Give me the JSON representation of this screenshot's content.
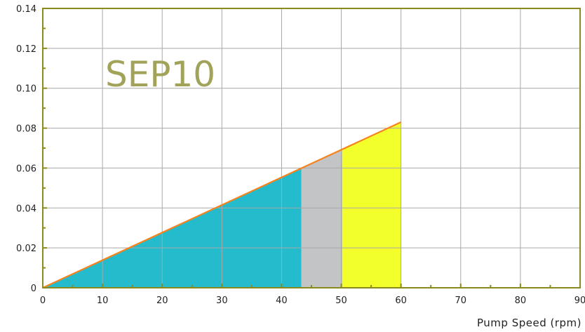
{
  "chart_data": {
    "type": "area",
    "title": "SEP10",
    "xlabel": "Pump Speed (rpm)",
    "ylabel": "",
    "xlim": [
      0,
      90
    ],
    "ylim": [
      0,
      0.14
    ],
    "xticks": [
      0,
      10,
      20,
      30,
      40,
      50,
      60,
      70,
      80,
      90
    ],
    "yticks": [
      0,
      0.02,
      0.04,
      0.06,
      0.08,
      0.1,
      0.12,
      0.14
    ],
    "xtick_labels": [
      "0",
      "10",
      "20",
      "30",
      "40",
      "50",
      "60",
      "70",
      "80",
      "90"
    ],
    "ytick_labels": [
      "0",
      "0.02",
      "0.04",
      "0.06",
      "0.08",
      "0.10",
      "0.12",
      "0.14"
    ],
    "grid": true,
    "series": [
      {
        "type": "line",
        "color": "#f5841f",
        "x": [
          0,
          60
        ],
        "y": [
          0,
          0.083
        ]
      }
    ],
    "regions": [
      {
        "x_start": 0,
        "x_end": 43.3,
        "color": "#24bccc"
      },
      {
        "x_start": 43.3,
        "x_end": 50.2,
        "color": "#c3c4c6"
      },
      {
        "x_start": 50.2,
        "x_end": 60,
        "color": "#f2ff2a"
      }
    ],
    "colors": {
      "frame": "#8c8a1e",
      "grid": "#a8a8a8",
      "title": "#a2a35a"
    }
  }
}
